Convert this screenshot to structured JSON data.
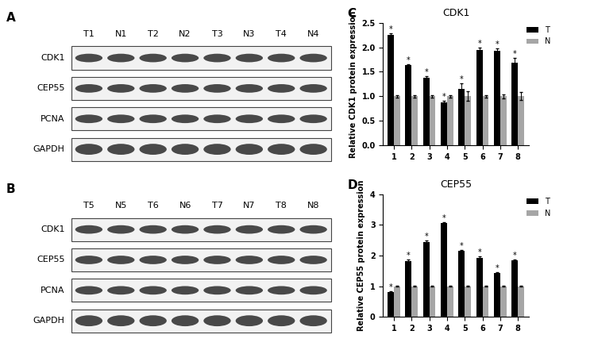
{
  "blots": [
    {
      "label": "A",
      "lanes": [
        "T1",
        "N1",
        "T2",
        "N2",
        "T3",
        "N3",
        "T4",
        "N4"
      ],
      "proteins": [
        "CDK1",
        "CEP55",
        "PCNA",
        "GAPDH"
      ]
    },
    {
      "label": "B",
      "lanes": [
        "T5",
        "N5",
        "T6",
        "N6",
        "T7",
        "N7",
        "T8",
        "N8"
      ],
      "proteins": [
        "CDK1",
        "CEP55",
        "PCNA",
        "GAPDH"
      ]
    }
  ],
  "chart_data": [
    {
      "label": "C",
      "type": "bar",
      "title": "CDK1",
      "ylabel": "Relative CDK1 protein expression",
      "categories": [
        "1",
        "2",
        "3",
        "4",
        "5",
        "6",
        "7",
        "8"
      ],
      "series": [
        {
          "name": "T",
          "color": "#000000",
          "values": [
            2.25,
            1.63,
            1.38,
            0.87,
            1.15,
            1.95,
            1.92,
            1.68
          ],
          "errors": [
            0.04,
            0.03,
            0.03,
            0.03,
            0.12,
            0.04,
            0.05,
            0.1
          ],
          "significance": [
            "*",
            "*",
            "*",
            "*",
            "*",
            "*",
            "*",
            "*"
          ]
        },
        {
          "name": "N",
          "color": "#a6a6a6",
          "values": [
            1.0,
            1.0,
            1.0,
            1.0,
            1.0,
            1.0,
            1.0,
            1.0
          ],
          "errors": [
            0.02,
            0.02,
            0.02,
            0.02,
            0.1,
            0.02,
            0.04,
            0.08
          ]
        }
      ],
      "ylim": [
        0,
        2.5
      ],
      "yticks": [
        {
          "value": 0,
          "label": "0.0"
        },
        {
          "value": 0.5,
          "label": "0.5"
        },
        {
          "value": 1,
          "label": "1.0"
        },
        {
          "value": 1.5,
          "label": "1.5"
        },
        {
          "value": 2,
          "label": "2.0"
        },
        {
          "value": 2.5,
          "label": "2.5"
        }
      ],
      "legend": "upper right"
    },
    {
      "label": "D",
      "type": "bar",
      "title": "CEP55",
      "ylabel": "Relative CEP55 protein expression",
      "categories": [
        "1",
        "2",
        "3",
        "4",
        "5",
        "6",
        "7",
        "8"
      ],
      "series": [
        {
          "name": "T",
          "color": "#000000",
          "values": [
            0.8,
            1.82,
            2.43,
            3.05,
            2.15,
            1.93,
            1.42,
            1.83
          ],
          "errors": [
            0.03,
            0.05,
            0.05,
            0.04,
            0.04,
            0.03,
            0.03,
            0.03
          ],
          "significance": [
            "*",
            "*",
            "*",
            "*",
            "*",
            "*",
            "*",
            "*"
          ]
        },
        {
          "name": "N",
          "color": "#a6a6a6",
          "values": [
            1.0,
            1.0,
            1.0,
            1.0,
            1.0,
            1.0,
            1.0,
            1.0
          ],
          "errors": [
            0.02,
            0.02,
            0.02,
            0.02,
            0.02,
            0.02,
            0.02,
            0.02
          ]
        }
      ],
      "ylim": [
        0,
        4
      ],
      "yticks": [
        0,
        1,
        2,
        3,
        4
      ],
      "legend": "upper right"
    }
  ]
}
